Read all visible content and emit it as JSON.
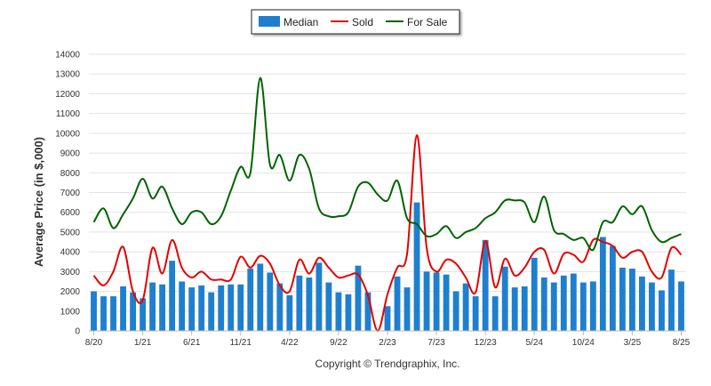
{
  "chart_data": {
    "type": "bar",
    "title": "",
    "xlabel": "",
    "ylabel": "Average Price (in $,000)",
    "ylim": [
      0,
      14000
    ],
    "yticks": [
      0,
      1000,
      2000,
      3000,
      4000,
      5000,
      6000,
      7000,
      8000,
      9000,
      10000,
      11000,
      12000,
      13000,
      14000
    ],
    "grid": true,
    "legend_position": "top-center",
    "credit": "Copyright © Trendgraphix, Inc.",
    "x_tick_labels": [
      {
        "index": 0,
        "label": "8/20"
      },
      {
        "index": 5,
        "label": "1/21"
      },
      {
        "index": 10,
        "label": "6/21"
      },
      {
        "index": 15,
        "label": "11/21"
      },
      {
        "index": 20,
        "label": "4/22"
      },
      {
        "index": 25,
        "label": "9/22"
      },
      {
        "index": 30,
        "label": "2/23"
      },
      {
        "index": 35,
        "label": "7/23"
      },
      {
        "index": 40,
        "label": "12/23"
      },
      {
        "index": 45,
        "label": "5/24"
      },
      {
        "index": 50,
        "label": "10/24"
      },
      {
        "index": 55,
        "label": "3/25"
      },
      {
        "index": 60,
        "label": "8/25"
      }
    ],
    "colors": {
      "median": "#1f7fcf",
      "sold": "#e60000",
      "for_sale": "#006400",
      "grid": "#e3e3e3",
      "axis": "#cfcfcf"
    },
    "series": [
      {
        "name": "Median",
        "kind": "bar",
        "values": [
          2000,
          1750,
          1750,
          2250,
          1950,
          1650,
          2450,
          2350,
          3550,
          2500,
          2200,
          2300,
          1950,
          2300,
          2350,
          2350,
          3150,
          3400,
          2950,
          2400,
          1800,
          2800,
          2700,
          3450,
          2450,
          1950,
          1850,
          3300,
          1950,
          0,
          1250,
          2750,
          2200,
          6500,
          3000,
          2950,
          2850,
          2000,
          2400,
          1750,
          4600,
          1750,
          3250,
          2200,
          2250,
          3700,
          2700,
          2450,
          2800,
          2900,
          2450,
          2500,
          4750,
          4300,
          3200,
          3150,
          2750,
          2450,
          2050,
          3100,
          2500
        ]
      },
      {
        "name": "Sold",
        "kind": "line",
        "values": [
          2800,
          2300,
          3000,
          4250,
          2000,
          1550,
          4200,
          2900,
          4600,
          3200,
          2700,
          3000,
          2600,
          2600,
          2600,
          3750,
          3200,
          3800,
          3400,
          2300,
          2000,
          3600,
          2900,
          3700,
          3200,
          2700,
          2800,
          2850,
          1800,
          0,
          1850,
          3200,
          3900,
          9900,
          4200,
          3000,
          3600,
          3400,
          2700,
          1950,
          4550,
          2200,
          3650,
          2800,
          3200,
          4000,
          4100,
          2900,
          3900,
          3850,
          3500,
          4600,
          4500,
          4300,
          3700,
          4000,
          4000,
          3000,
          2700,
          4200,
          3850
        ]
      },
      {
        "name": "For Sale",
        "kind": "line",
        "values": [
          5500,
          6200,
          5200,
          5900,
          6700,
          7700,
          6700,
          7300,
          6200,
          5400,
          6000,
          6000,
          5400,
          5800,
          7100,
          8300,
          8000,
          12800,
          8400,
          8900,
          7600,
          8900,
          8200,
          6200,
          5800,
          5800,
          6000,
          7300,
          7500,
          6900,
          6600,
          7600,
          5700,
          5400,
          4800,
          4900,
          5300,
          4700,
          5000,
          5200,
          5700,
          6000,
          6600,
          6600,
          6500,
          5500,
          6800,
          5100,
          4900,
          4600,
          4700,
          4100,
          5500,
          5500,
          6300,
          5900,
          6300,
          5100,
          4500,
          4700,
          4900
        ]
      }
    ]
  }
}
